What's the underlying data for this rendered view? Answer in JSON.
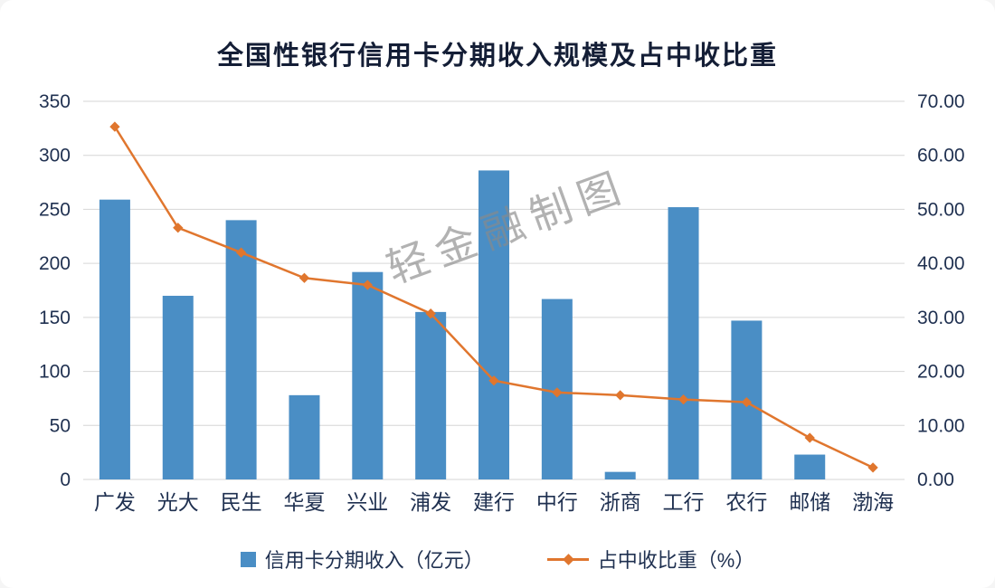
{
  "title": "全国性银行信用卡分期收入规模及占中收比重",
  "watermark": "轻金融制图",
  "colors": {
    "bar": "#4a8ec5",
    "line": "#e0762e",
    "grid": "#d6d6d6",
    "axis_text": "#1f3050",
    "title": "#141e36",
    "legend_text": "#1f3050"
  },
  "chart_data": {
    "type": "bar+line",
    "title": "全国性银行信用卡分期收入规模及占中收比重",
    "categories": [
      "广发",
      "光大",
      "民生",
      "华夏",
      "兴业",
      "浦发",
      "建行",
      "中行",
      "浙商",
      "工行",
      "农行",
      "邮储",
      "渤海"
    ],
    "series": [
      {
        "name": "信用卡分期收入（亿元）",
        "type": "bar",
        "axis": "left",
        "values": [
          259,
          170,
          240,
          78,
          192,
          155,
          286,
          167,
          7,
          252,
          147,
          23,
          0
        ]
      },
      {
        "name": "占中收比重（%）",
        "type": "line",
        "axis": "right",
        "values": [
          65.3,
          46.6,
          42.0,
          37.3,
          36.0,
          30.7,
          18.3,
          16.1,
          15.6,
          14.8,
          14.3,
          7.7,
          2.2
        ]
      }
    ],
    "left_axis": {
      "min": 0,
      "max": 350,
      "step": 50,
      "ticks": [
        "0",
        "50",
        "100",
        "150",
        "200",
        "250",
        "300",
        "350"
      ]
    },
    "right_axis": {
      "min": 0,
      "max": 70,
      "step": 10,
      "ticks": [
        "0.00",
        "10.00",
        "20.00",
        "30.00",
        "40.00",
        "50.00",
        "60.00",
        "70.00"
      ]
    },
    "grid": "horizontal",
    "legend_position": "bottom",
    "legend": [
      {
        "label": "信用卡分期收入（亿元）",
        "marker": "bar"
      },
      {
        "label": "占中收比重（%）",
        "marker": "line"
      }
    ]
  }
}
